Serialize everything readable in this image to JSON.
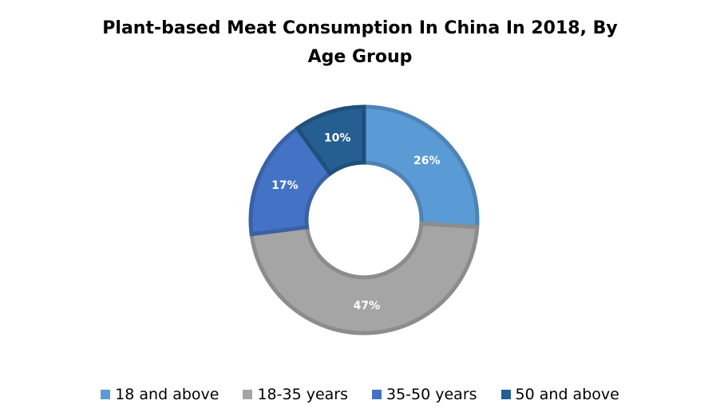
{
  "chart_data": {
    "type": "pie",
    "variant": "donut",
    "title_lines": [
      "Plant-based Meat Consumption In China In 2018, By",
      "Age Group"
    ],
    "slices": [
      {
        "label": "18 and above",
        "value": 26,
        "display": "26%",
        "color": "#5b9bd5"
      },
      {
        "label": "18-35 years",
        "value": 47,
        "display": "47%",
        "color": "#a5a5a5"
      },
      {
        "label": "35-50 years",
        "value": 17,
        "display": "17%",
        "color": "#4472c4"
      },
      {
        "label": "50 and above",
        "value": 10,
        "display": "10%",
        "color": "#255e91"
      }
    ],
    "start_angle": "top, clockwise",
    "legend_position": "bottom",
    "unit": "%"
  }
}
